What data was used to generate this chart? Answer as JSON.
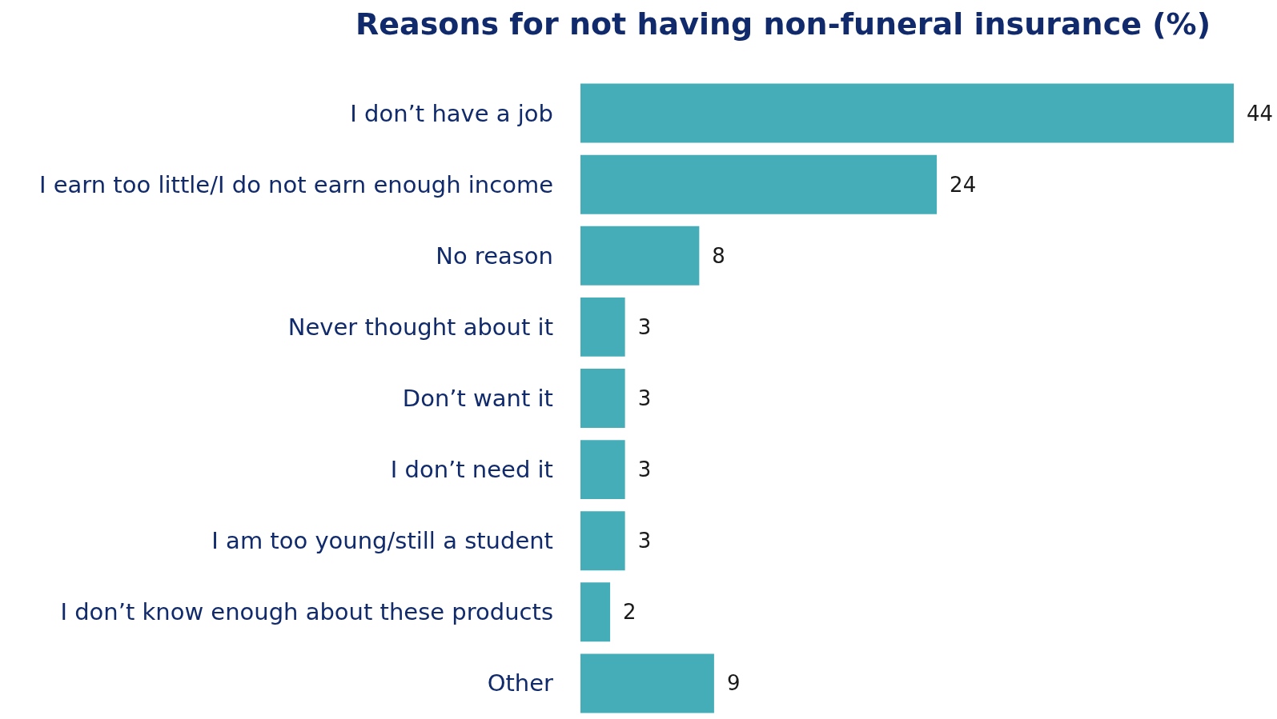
{
  "chart_data": {
    "type": "bar",
    "orientation": "horizontal",
    "title": "Reasons for not having non-funeral insurance (%)",
    "categories": [
      "I don’t have a job",
      "I earn too little/I do not earn enough income",
      "No reason",
      "Never thought about it",
      "Don’t want it",
      "I don’t need it",
      "I am too young/still a student",
      "I don’t know enough about these products",
      "Other"
    ],
    "values": [
      44,
      24,
      8,
      3,
      3,
      3,
      3,
      2,
      9
    ],
    "color": "#44adb8",
    "data_labels": true
  }
}
